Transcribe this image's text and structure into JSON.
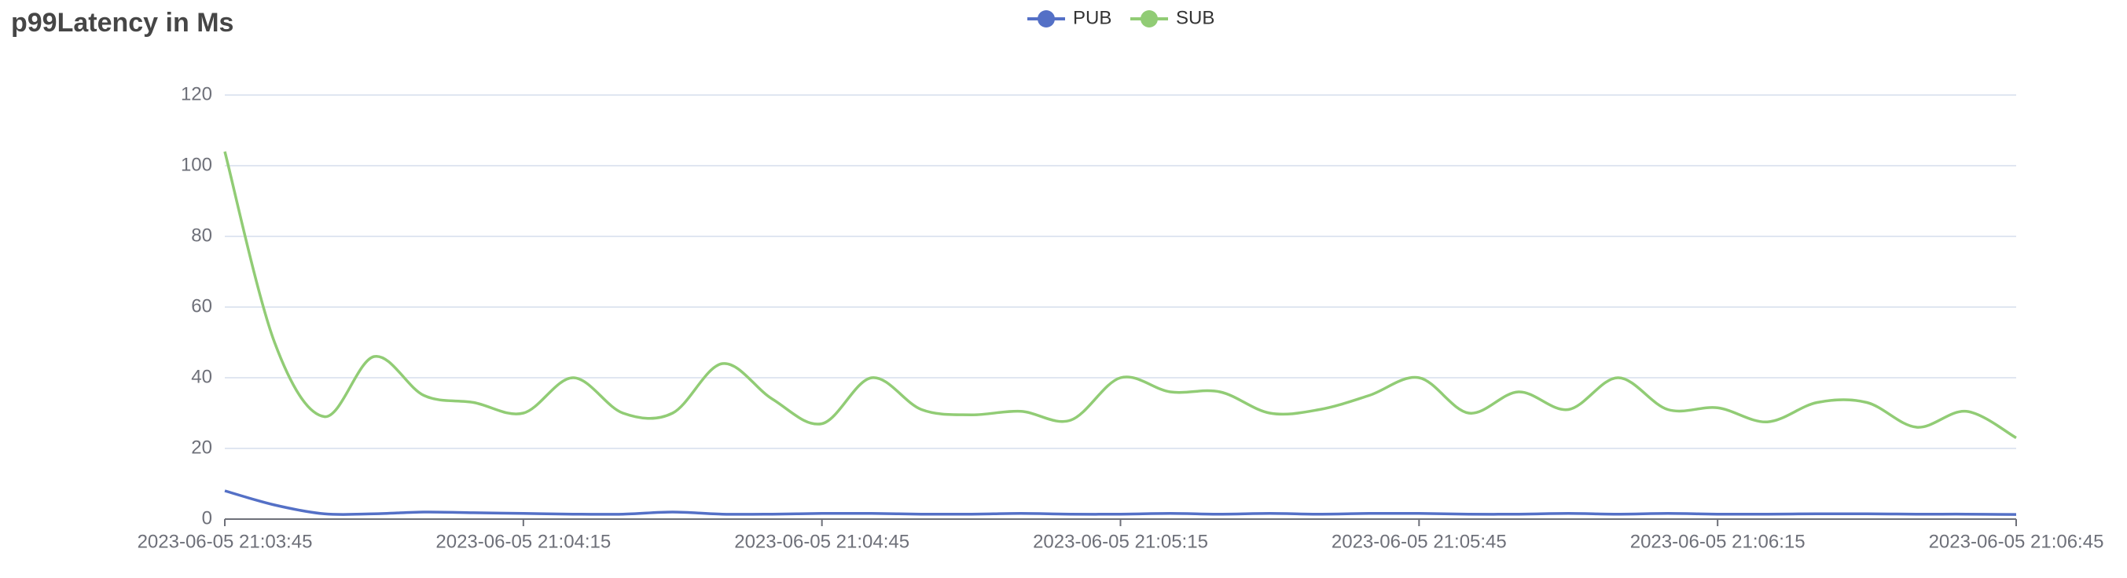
{
  "chart_data": {
    "type": "line",
    "title": "p99Latency in Ms",
    "x": [
      "2023-06-05 21:03:45",
      "2023-06-05 21:03:50",
      "2023-06-05 21:03:55",
      "2023-06-05 21:04:00",
      "2023-06-05 21:04:05",
      "2023-06-05 21:04:10",
      "2023-06-05 21:04:15",
      "2023-06-05 21:04:20",
      "2023-06-05 21:04:25",
      "2023-06-05 21:04:30",
      "2023-06-05 21:04:35",
      "2023-06-05 21:04:40",
      "2023-06-05 21:04:45",
      "2023-06-05 21:04:50",
      "2023-06-05 21:04:55",
      "2023-06-05 21:05:00",
      "2023-06-05 21:05:05",
      "2023-06-05 21:05:10",
      "2023-06-05 21:05:15",
      "2023-06-05 21:05:20",
      "2023-06-05 21:05:25",
      "2023-06-05 21:05:30",
      "2023-06-05 21:05:35",
      "2023-06-05 21:05:40",
      "2023-06-05 21:05:45",
      "2023-06-05 21:05:50",
      "2023-06-05 21:05:55",
      "2023-06-05 21:06:00",
      "2023-06-05 21:06:05",
      "2023-06-05 21:06:10",
      "2023-06-05 21:06:15",
      "2023-06-05 21:06:20",
      "2023-06-05 21:06:25",
      "2023-06-05 21:06:30",
      "2023-06-05 21:06:35",
      "2023-06-05 21:06:40",
      "2023-06-05 21:06:45"
    ],
    "series": [
      {
        "name": "PUB",
        "color": "#5470c6",
        "values": [
          8,
          4,
          1.5,
          1.5,
          2,
          1.8,
          1.6,
          1.4,
          1.4,
          2,
          1.4,
          1.4,
          1.6,
          1.6,
          1.4,
          1.4,
          1.6,
          1.4,
          1.4,
          1.6,
          1.4,
          1.6,
          1.4,
          1.6,
          1.6,
          1.4,
          1.4,
          1.6,
          1.4,
          1.6,
          1.4,
          1.4,
          1.5,
          1.5,
          1.4,
          1.4,
          1.3
        ]
      },
      {
        "name": "SUB",
        "color": "#91cc75",
        "values": [
          104,
          50,
          29,
          46,
          35,
          33,
          30,
          40,
          30,
          30,
          44,
          34,
          27,
          40,
          31,
          29.5,
          30.5,
          28,
          40,
          36,
          36,
          30,
          31,
          35,
          40,
          30,
          36,
          31,
          40,
          31,
          31.5,
          27.5,
          33,
          33,
          26,
          30.5,
          23
        ]
      }
    ],
    "xlim": [
      "2023-06-05 21:03:45",
      "2023-06-05 21:06:45"
    ],
    "xticks": [
      "2023-06-05 21:03:45",
      "2023-06-05 21:04:15",
      "2023-06-05 21:04:45",
      "2023-06-05 21:05:15",
      "2023-06-05 21:05:45",
      "2023-06-05 21:06:15",
      "2023-06-05 21:06:45"
    ],
    "ylim": [
      0,
      120
    ],
    "yticks": [
      0,
      20,
      40,
      60,
      80,
      100,
      120
    ],
    "grid": true
  }
}
